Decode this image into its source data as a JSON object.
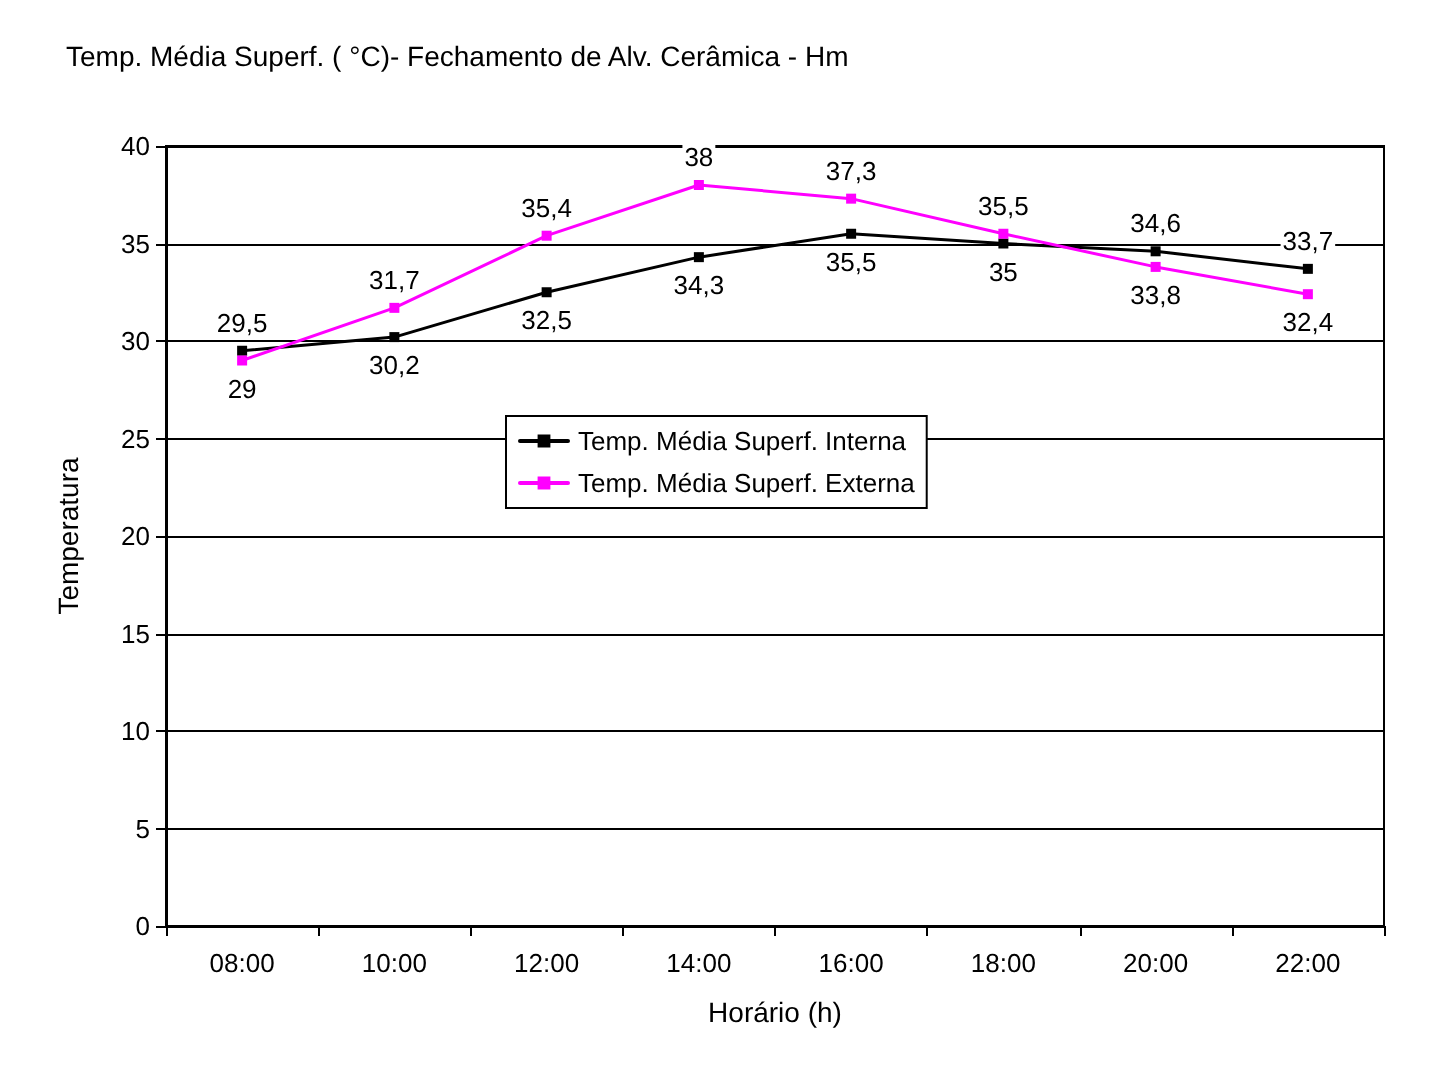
{
  "chart_data": {
    "type": "line",
    "title": "Temp. Média Superf. ( °C)- Fechamento de Alv. Cerâmica - Hm",
    "xlabel": "Horário (h)",
    "ylabel": "Temperatura",
    "categories": [
      "08:00",
      "10:00",
      "12:00",
      "14:00",
      "16:00",
      "18:00",
      "20:00",
      "22:00"
    ],
    "series": [
      {
        "name": "Temp. Média Superf. Interna",
        "color": "#000000",
        "values": [
          29.5,
          30.2,
          32.5,
          34.3,
          35.5,
          35,
          34.6,
          33.7
        ],
        "value_labels": [
          "29,5",
          "30,2",
          "32,5",
          "34,3",
          "35,5",
          "35",
          "34,6",
          "33,7"
        ]
      },
      {
        "name": "Temp. Média Superf. Externa",
        "color": "#ff00ff",
        "values": [
          29,
          31.7,
          35.4,
          38,
          37.3,
          35.5,
          33.8,
          32.4
        ],
        "value_labels": [
          "29",
          "31,7",
          "35,4",
          "38",
          "37,3",
          "35,5",
          "33,8",
          "32,4"
        ]
      }
    ],
    "ylim": [
      0,
      40
    ],
    "yticks": [
      0,
      5,
      10,
      15,
      20,
      25,
      30,
      35,
      40
    ],
    "grid": "y",
    "legend": "center",
    "marker": "square",
    "line_style": "solid"
  }
}
